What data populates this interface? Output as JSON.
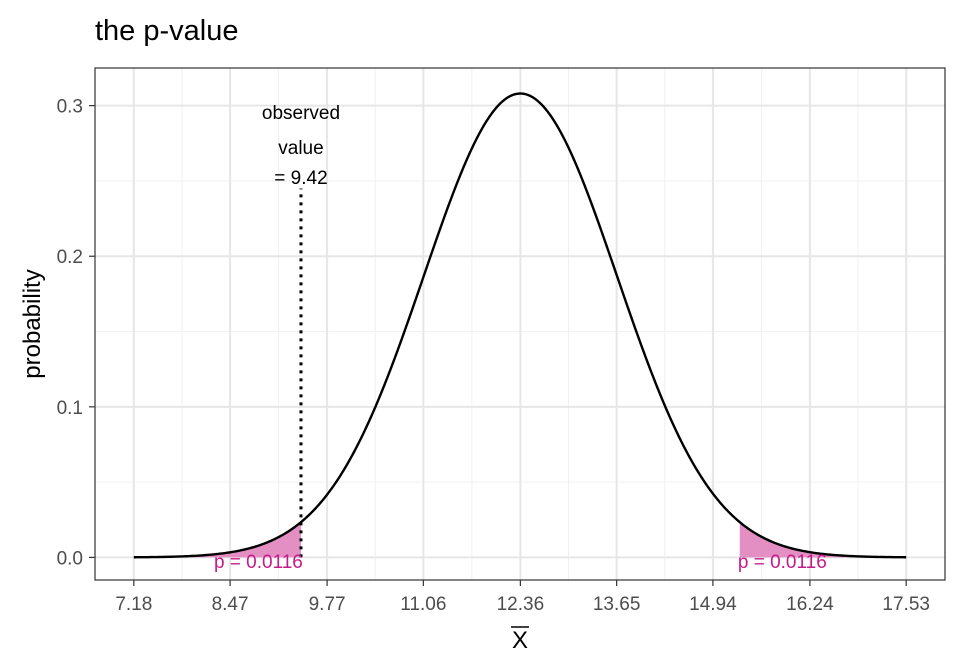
{
  "chart_data": {
    "type": "line",
    "title": "the p-value",
    "xlabel": "X",
    "xlabel_overline": true,
    "ylabel": "probability",
    "xlim": [
      6.66,
      18.05
    ],
    "ylim": [
      -0.015,
      0.325
    ],
    "x_ticks": [
      7.18,
      8.47,
      9.77,
      11.06,
      12.36,
      13.65,
      14.94,
      16.24,
      17.53
    ],
    "x_tick_labels": [
      "7.18",
      "8.47",
      "9.77",
      "11.06",
      "12.36",
      "13.65",
      "14.94",
      "16.24",
      "17.53"
    ],
    "y_ticks": [
      0.0,
      0.1,
      0.2,
      0.3
    ],
    "y_tick_labels": [
      "0.0",
      "0.1",
      "0.2",
      "0.3"
    ],
    "grid": true,
    "theme": "bw",
    "curve": {
      "distribution": "normal",
      "mean": 12.36,
      "sd": 1.295,
      "x_range": [
        7.18,
        17.53
      ],
      "color": "#000000"
    },
    "observed_value": 9.42,
    "observed_line_top": 0.245,
    "annotation_lines": [
      "observed",
      "value",
      "= 9.42"
    ],
    "annotation_y": [
      0.291,
      0.268,
      0.248
    ],
    "shaded_regions": [
      {
        "from": 7.18,
        "to": 9.42,
        "label": "p = 0.0116",
        "label_x": 8.85,
        "label_y": -0.007
      },
      {
        "from": 15.3,
        "to": 17.53,
        "label": "p = 0.0116",
        "label_x": 15.87,
        "label_y": -0.007
      }
    ],
    "shade_color": "#e48fc3",
    "label_color": "#c51b8a"
  }
}
